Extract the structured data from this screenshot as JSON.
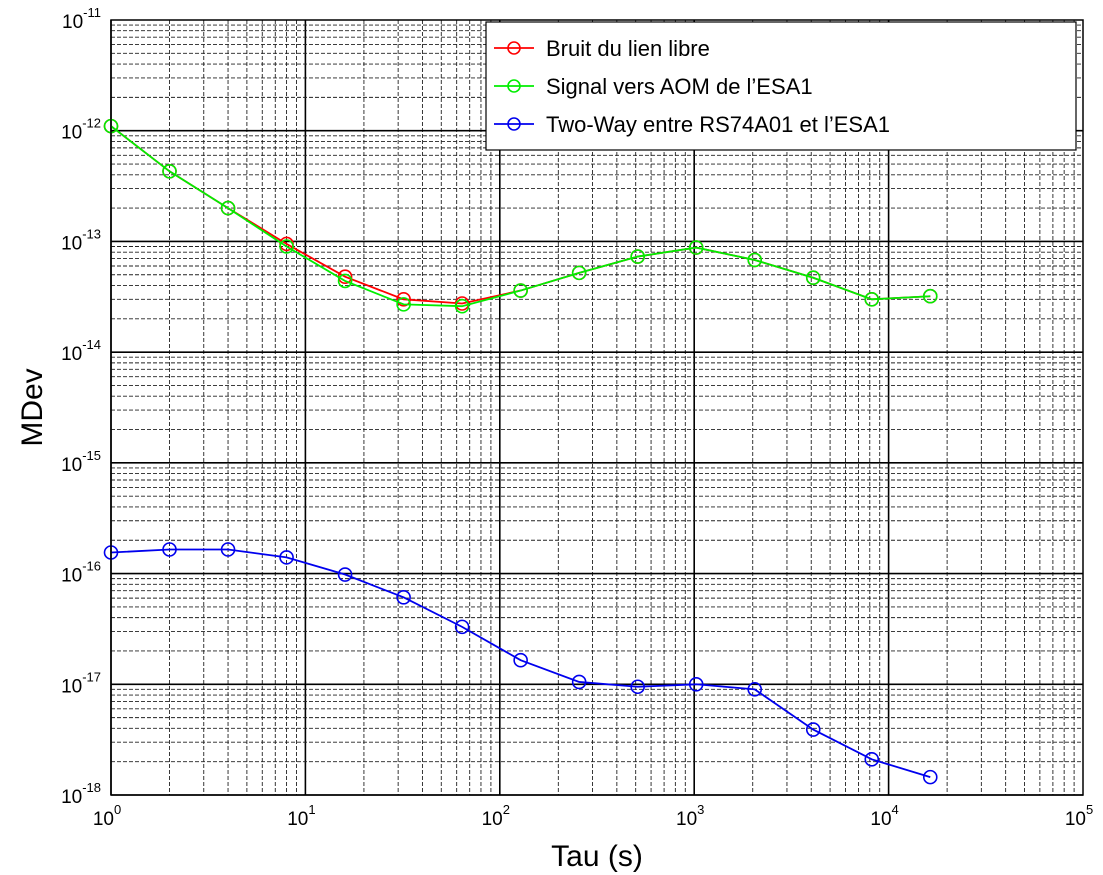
{
  "chart_data": {
    "type": "line",
    "xlabel": "Tau (s)",
    "ylabel": "MDev",
    "x_scale": "log",
    "y_scale": "log",
    "xlim": [
      1,
      100000
    ],
    "ylim": [
      1e-18,
      1e-11
    ],
    "x_ticks": [
      {
        "base": "10",
        "exp": "0"
      },
      {
        "base": "10",
        "exp": "1"
      },
      {
        "base": "10",
        "exp": "2"
      },
      {
        "base": "10",
        "exp": "3"
      },
      {
        "base": "10",
        "exp": "4"
      },
      {
        "base": "10",
        "exp": "5"
      }
    ],
    "y_ticks": [
      {
        "base": "10",
        "exp": "-18"
      },
      {
        "base": "10",
        "exp": "-17"
      },
      {
        "base": "10",
        "exp": "-16"
      },
      {
        "base": "10",
        "exp": "-15"
      },
      {
        "base": "10",
        "exp": "-14"
      },
      {
        "base": "10",
        "exp": "-13"
      },
      {
        "base": "10",
        "exp": "-12"
      },
      {
        "base": "10",
        "exp": "-11"
      }
    ],
    "grid": true,
    "legend_position": "top-right",
    "x": [
      1,
      2,
      4,
      8,
      16,
      32,
      64,
      128,
      256,
      512,
      1024,
      2048,
      4096,
      8192,
      16384
    ],
    "series": [
      {
        "name": "Bruit du lien libre",
        "color": "#ff0000",
        "marker": "circle",
        "values": [
          1.1e-12,
          4.3e-13,
          2e-13,
          9.5e-14,
          4.8e-14,
          3e-14,
          2.75e-14,
          3.6e-14,
          5.2e-14,
          7.3e-14,
          8.8e-14,
          6.8e-14,
          4.7e-14,
          3e-14,
          3.2e-14
        ]
      },
      {
        "name": "Signal vers AOM de l’ESA1",
        "color": "#00ee00",
        "marker": "circle",
        "values": [
          1.1e-12,
          4.3e-13,
          2e-13,
          9e-14,
          4.4e-14,
          2.7e-14,
          2.6e-14,
          3.6e-14,
          5.2e-14,
          7.3e-14,
          8.8e-14,
          6.8e-14,
          4.7e-14,
          3e-14,
          3.2e-14
        ]
      },
      {
        "name": "Two-Way entre RS74A01 et l’ESA1",
        "color": "#0000ee",
        "marker": "circle",
        "values": [
          1.55e-16,
          1.65e-16,
          1.65e-16,
          1.4e-16,
          9.8e-17,
          6.1e-17,
          3.3e-17,
          1.65e-17,
          1.05e-17,
          9.5e-18,
          1e-17,
          9e-18,
          3.9e-18,
          2.1e-18,
          1.45e-18
        ]
      }
    ]
  }
}
